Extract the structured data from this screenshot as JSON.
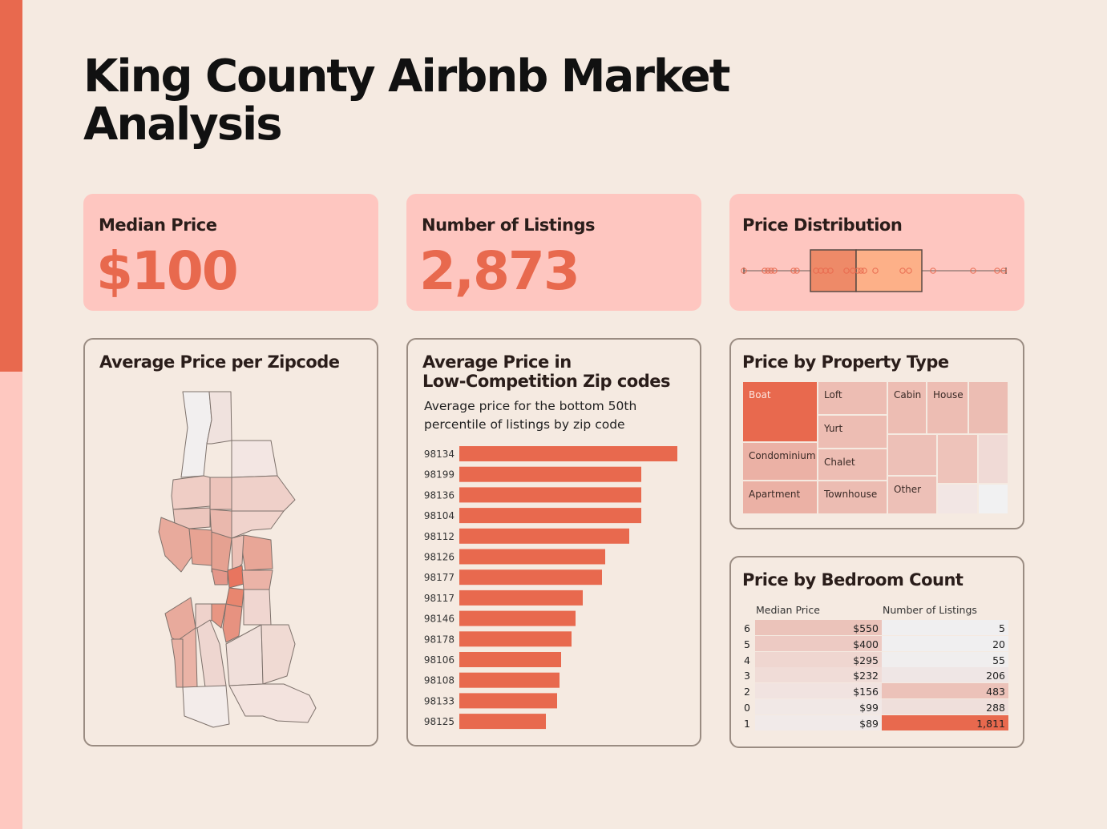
{
  "title": "King County Airbnb Market Analysis",
  "kpis": {
    "median_price_label": "Median Price",
    "median_price_value": "$100",
    "listings_label": "Number of Listings",
    "listings_value": "2,873",
    "distribution_label": "Price Distribution"
  },
  "map_panel": {
    "title": "Average Price per Zipcode"
  },
  "low_comp_panel": {
    "title_line1": "Average Price in",
    "title_line2": "Low-Competition Zip codes",
    "subtitle": "Average price for the bottom 50th percentile of listings by zip code"
  },
  "property_panel": {
    "title": "Price by Property Type"
  },
  "bedroom_panel": {
    "title": "Price by Bedroom Count",
    "col_price": "Median Price",
    "col_listings": "Number of Listings"
  },
  "colors": {
    "accent": "#e8694e",
    "kpi_bg": "#fec6c0",
    "background": "#f5eae1"
  },
  "chart_data": [
    {
      "type": "bar",
      "orientation": "horizontal",
      "title": "Average Price in Low-Competition Zip codes",
      "categories": [
        "98134",
        "98199",
        "98136",
        "98104",
        "98112",
        "98126",
        "98177",
        "98117",
        "98146",
        "98178",
        "98106",
        "98108",
        "98133",
        "98125"
      ],
      "values": [
        272,
        227,
        227,
        227,
        212,
        182,
        178,
        154,
        145,
        140,
        127,
        125,
        122,
        108
      ]
    },
    {
      "type": "box",
      "title": "Price Distribution",
      "box": {
        "whisker_low": 928,
        "q1": 1011,
        "median": 1068,
        "q3": 1150,
        "whisker_high": 1255
      },
      "outliers": [
        928,
        954,
        958,
        962,
        966,
        990,
        994,
        1018,
        1024,
        1030,
        1036,
        1056,
        1064,
        1070,
        1074,
        1078,
        1092,
        1126,
        1134,
        1164,
        1214,
        1244,
        1252
      ]
    },
    {
      "type": "treemap",
      "title": "Price by Property Type",
      "labels": [
        "Boat",
        "Loft",
        "Cabin",
        "House",
        "Condominium",
        "Yurt",
        "Chalet",
        "Apartment",
        "Townhouse",
        "Other"
      ]
    },
    {
      "type": "table",
      "title": "Price by Bedroom Count",
      "columns": [
        "Median Price",
        "Number of Listings"
      ],
      "rows": [
        {
          "bedrooms": "6",
          "median_price": "$550",
          "listings": "5"
        },
        {
          "bedrooms": "5",
          "median_price": "$400",
          "listings": "20"
        },
        {
          "bedrooms": "4",
          "median_price": "$295",
          "listings": "55"
        },
        {
          "bedrooms": "3",
          "median_price": "$232",
          "listings": "206"
        },
        {
          "bedrooms": "2",
          "median_price": "$156",
          "listings": "483"
        },
        {
          "bedrooms": "0",
          "median_price": "$99",
          "listings": "288"
        },
        {
          "bedrooms": "1",
          "median_price": "$89",
          "listings": "1,811"
        }
      ]
    }
  ]
}
